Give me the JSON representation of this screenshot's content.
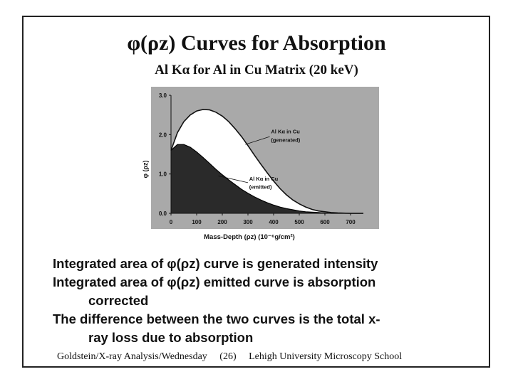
{
  "slide": {
    "title": "φ(ρz) Curves for Absorption",
    "subtitle": "Al Kα for Al in Cu Matrix (20 keV)",
    "bullets": [
      {
        "main": "Integrated area of φ(ρz) curve is generated intensity",
        "cont": ""
      },
      {
        "main": "Integrated area of φ(ρz) emitted curve is absorption",
        "cont": "corrected"
      },
      {
        "main": "The difference between the two curves is the total x-",
        "cont": "ray loss due to absorption"
      }
    ],
    "footer": {
      "left": "Goldstein/X-ray Analysis/Wednesday",
      "page": "(26)",
      "right": "Lehigh University Microscopy School"
    }
  },
  "colors": {
    "frame": "#222222",
    "plot_bg": "#a9a9a9",
    "emitted_fill": "#2a2a2a",
    "generated_fill": "#ffffff"
  },
  "chart_data": {
    "type": "area",
    "xlabel": "Mass-Depth (ρz) (10⁻⁶g/cm²)",
    "ylabel": "φ (ρz)",
    "xlim": [
      0,
      750
    ],
    "ylim": [
      0,
      3.0
    ],
    "x_ticks": [
      0,
      100,
      200,
      300,
      400,
      500,
      600,
      700
    ],
    "x_tick_labels": [
      "0",
      "100",
      "200",
      "300",
      "400",
      "500",
      "600",
      "700"
    ],
    "y_ticks": [
      0,
      1.0,
      2.0,
      3.0
    ],
    "y_tick_labels": [
      "0.0",
      "1.0",
      "2.0",
      "3.0"
    ],
    "x": [
      0,
      25,
      50,
      75,
      100,
      125,
      150,
      175,
      200,
      225,
      250,
      275,
      300,
      325,
      350,
      375,
      400,
      425,
      450,
      475,
      500,
      525,
      550,
      575,
      600,
      625,
      650,
      700,
      750
    ],
    "series": [
      {
        "name": "Al Kα in Cu (generated)",
        "values": [
          1.6,
          2.05,
          2.33,
          2.5,
          2.6,
          2.64,
          2.63,
          2.57,
          2.47,
          2.33,
          2.15,
          1.95,
          1.72,
          1.48,
          1.25,
          1.03,
          0.82,
          0.63,
          0.47,
          0.34,
          0.24,
          0.16,
          0.1,
          0.06,
          0.04,
          0.02,
          0.01,
          0.0,
          0.0
        ]
      },
      {
        "name": "Al Kα in Cu (emitted)",
        "values": [
          1.6,
          1.75,
          1.75,
          1.68,
          1.56,
          1.42,
          1.27,
          1.12,
          0.98,
          0.85,
          0.73,
          0.61,
          0.51,
          0.42,
          0.34,
          0.27,
          0.21,
          0.16,
          0.12,
          0.09,
          0.06,
          0.04,
          0.03,
          0.02,
          0.01,
          0.0,
          0.0,
          0.0,
          0.0
        ]
      }
    ],
    "annotations": [
      {
        "text_main": "Al Kα in Cu",
        "text_sub": "(generated)",
        "at_x": 290,
        "at_y": 1.75
      },
      {
        "text_main": "Al Kα in Cu",
        "text_sub": "(emitted)",
        "at_x": 185,
        "at_y": 0.95
      }
    ]
  }
}
